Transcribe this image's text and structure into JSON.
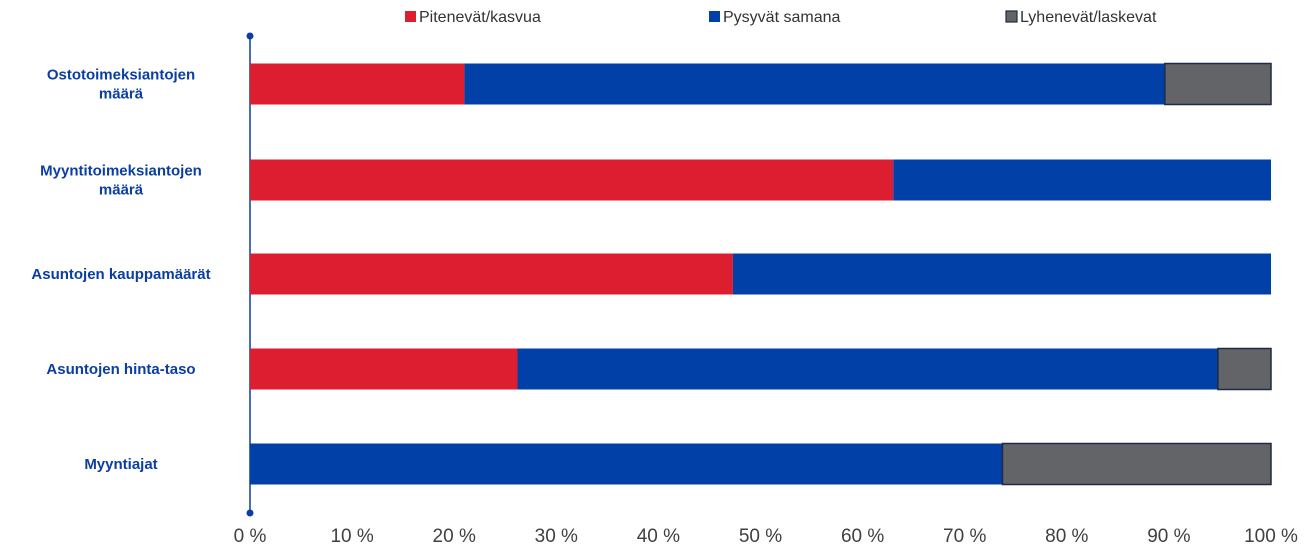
{
  "chart_data": {
    "type": "bar",
    "orientation": "horizontal",
    "stacked": true,
    "categories": [
      [
        "Ostotoimeksiantojen",
        "määrä"
      ],
      [
        "Myyntitoimeksiantojen",
        "määrä"
      ],
      [
        "Asuntojen kauppamäärät"
      ],
      [
        "Asuntojen hinta-taso"
      ],
      [
        "Myyntiajat"
      ]
    ],
    "series": [
      {
        "name": "Pitenevät/kasvua",
        "color": "#dd1e31",
        "values": [
          21,
          63,
          47.3,
          26.2,
          0
        ]
      },
      {
        "name": "Pysyvät samana",
        "color": "#0140a6",
        "values": [
          68.6,
          37,
          52.7,
          68.6,
          73.7
        ]
      },
      {
        "name": "Lyhenevät/laskevat",
        "color": "#636468",
        "values": [
          10.4,
          0,
          0,
          5.2,
          26.3
        ]
      }
    ],
    "x_ticks": [
      "0 %",
      "10 %",
      "20 %",
      "30 %",
      "40 %",
      "50 %",
      "60 %",
      "70 %",
      "80 %",
      "90 %",
      "100 %"
    ],
    "xlim": [
      0,
      100
    ],
    "legend_position": "top",
    "grid": false,
    "axis_color": "#0b3ea3"
  }
}
